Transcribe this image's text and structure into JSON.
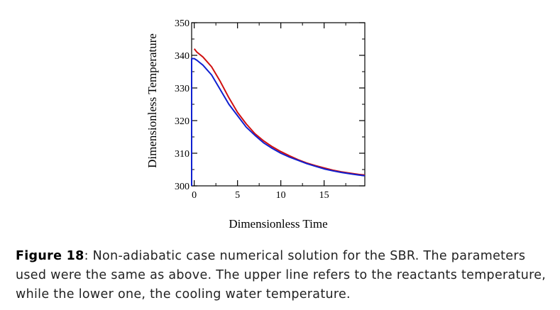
{
  "chart_data": {
    "type": "line",
    "xlabel": "Dimensionless Time",
    "ylabel": "Dimensionless Temperature",
    "xlim": [
      -0.3,
      19.7
    ],
    "ylim": [
      300,
      350
    ],
    "x_ticks": [
      0,
      5,
      10,
      15
    ],
    "y_ticks": [
      300,
      310,
      320,
      330,
      340,
      350
    ],
    "grid": false,
    "series": [
      {
        "color": "#d01010",
        "x": [
          0,
          0.3,
          1,
          2,
          3,
          4,
          5,
          6,
          7,
          8,
          9,
          10,
          11,
          12,
          13,
          14,
          15,
          16,
          17,
          18,
          19,
          19.7
        ],
        "values": [
          342,
          341,
          339.5,
          336.5,
          332,
          327,
          322.5,
          319,
          316,
          313.8,
          312,
          310.5,
          309.2,
          308,
          307,
          306.2,
          305.5,
          304.8,
          304.3,
          303.9,
          303.5,
          303.3
        ]
      },
      {
        "color": "#1020d0",
        "x": [
          -0.3,
          -0.3,
          0,
          0.3,
          1,
          2,
          3,
          4,
          5,
          6,
          7,
          8,
          9,
          10,
          11,
          12,
          13,
          14,
          15,
          16,
          17,
          18,
          19,
          19.7
        ],
        "values": [
          300,
          339,
          339,
          338.5,
          337,
          334,
          329.5,
          325,
          321.5,
          318,
          315.5,
          313.2,
          311.5,
          310,
          308.8,
          307.8,
          306.8,
          306,
          305.2,
          304.6,
          304.1,
          303.7,
          303.3,
          303.1
        ]
      }
    ]
  },
  "caption": {
    "label": "Figure 18",
    "text": ": Non-adiabatic case numerical solution for the SBR. The parameters used were the same as above. The upper line refers to the reactants temperature, while the lower one, the cooling water temperature."
  }
}
